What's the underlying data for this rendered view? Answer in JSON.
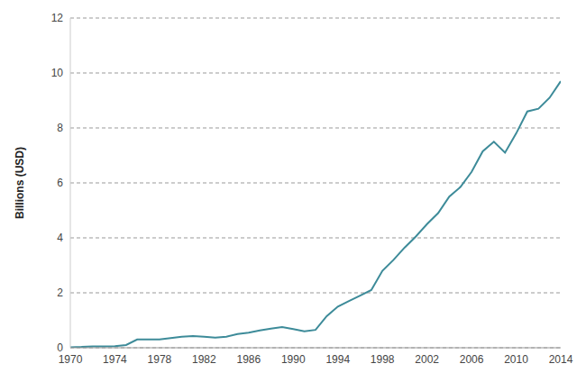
{
  "chart_data": {
    "type": "line",
    "y_label": "Billions (USD)",
    "x": [
      1970,
      1971,
      1972,
      1973,
      1974,
      1975,
      1976,
      1977,
      1978,
      1979,
      1980,
      1981,
      1982,
      1983,
      1984,
      1985,
      1986,
      1987,
      1988,
      1989,
      1990,
      1991,
      1992,
      1993,
      1994,
      1995,
      1996,
      1997,
      1998,
      1999,
      2000,
      2001,
      2002,
      2003,
      2004,
      2005,
      2006,
      2007,
      2008,
      2009,
      2010,
      2011,
      2012,
      2013,
      2014
    ],
    "values": [
      0.02,
      0.03,
      0.05,
      0.05,
      0.06,
      0.1,
      0.3,
      0.3,
      0.3,
      0.35,
      0.4,
      0.43,
      0.4,
      0.37,
      0.4,
      0.5,
      0.55,
      0.63,
      0.7,
      0.75,
      0.68,
      0.6,
      0.65,
      1.15,
      1.5,
      1.7,
      1.9,
      2.1,
      2.8,
      3.2,
      3.65,
      4.05,
      4.5,
      4.9,
      5.5,
      5.85,
      6.4,
      7.15,
      7.5,
      7.1,
      7.8,
      8.6,
      8.7,
      9.1,
      9.7
    ],
    "color": "#3d8b99",
    "xlim": [
      1970,
      2014
    ],
    "ylim": [
      0,
      12
    ],
    "xticks": [
      1970,
      1974,
      1978,
      1982,
      1986,
      1990,
      1994,
      1998,
      2002,
      2006,
      2010,
      2014
    ],
    "yticks": [
      0,
      2,
      4,
      6,
      8,
      10,
      12
    ],
    "grid": true
  }
}
